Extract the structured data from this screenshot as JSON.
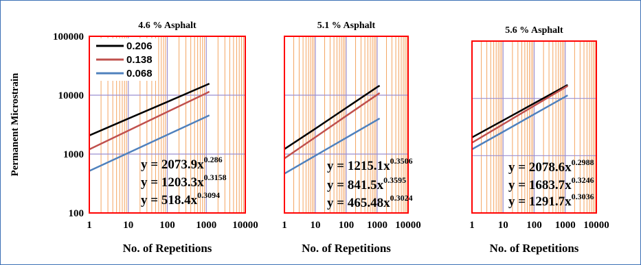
{
  "chart_data": [
    {
      "type": "line",
      "title": "4.6 % Asphalt",
      "xlabel": "No. of Repetitions",
      "ylabel": "Permanent Microstrain",
      "xscale": "log",
      "yscale": "log",
      "xlim": [
        1,
        10000
      ],
      "ylim": [
        100,
        100000
      ],
      "x_ticks": [
        "1",
        "10",
        "100",
        "1000",
        "10000"
      ],
      "y_ticks": [
        "100",
        "1000",
        "10000",
        "100000"
      ],
      "grid": true,
      "legend": "top-left",
      "series": [
        {
          "name": "0.206",
          "color": "#000000",
          "x": [
            1,
            10,
            100,
            1000,
            1200
          ],
          "y": [
            2074,
            4000,
            7700,
            14900,
            15700
          ]
        },
        {
          "name": "0.138",
          "color": "#c0504d",
          "x": [
            1,
            10,
            100,
            1000,
            1200
          ],
          "y": [
            1203,
            2500,
            5200,
            10800,
            11500
          ]
        },
        {
          "name": "0.068",
          "color": "#4f81bd",
          "x": [
            1,
            10,
            100,
            1000,
            1200
          ],
          "y": [
            518,
            1050,
            2120,
            4300,
            4550
          ]
        }
      ],
      "equations": [
        {
          "base": "y = 2073.9x",
          "exp": "0.286"
        },
        {
          "base": "y = 1203.3x",
          "exp": "0.3158"
        },
        {
          "base": "y = 518.4x",
          "exp": "0.3094"
        }
      ]
    },
    {
      "type": "line",
      "title": "5.1 % Asphalt",
      "xlabel": "No. of Repetitions",
      "xscale": "log",
      "yscale": "log",
      "xlim": [
        1,
        10000
      ],
      "ylim": [
        100,
        100000
      ],
      "x_ticks": [
        "1",
        "10",
        "100",
        "1000",
        "10000"
      ],
      "grid": true,
      "series": [
        {
          "color": "#000000",
          "x": [
            1,
            10,
            100,
            1000,
            1200
          ],
          "y": [
            1215,
            2700,
            6100,
            13700,
            14500
          ]
        },
        {
          "color": "#c0504d",
          "x": [
            1,
            10,
            100,
            1000,
            1200
          ],
          "y": [
            842,
            1930,
            4450,
            10200,
            10900
          ]
        },
        {
          "color": "#4f81bd",
          "x": [
            1,
            10,
            100,
            1000,
            1200
          ],
          "y": [
            465,
            940,
            1890,
            3800,
            4030
          ]
        }
      ],
      "equations": [
        {
          "base": "y = 1215.1x",
          "exp": "0.3506"
        },
        {
          "base": "y = 841.5x",
          "exp": "0.3595"
        },
        {
          "base": "y = 465.48x",
          "exp": "0.3024"
        }
      ]
    },
    {
      "type": "line",
      "title": "5.6 % Asphalt",
      "xlabel": "No. of Repetitions",
      "xscale": "log",
      "yscale": "log",
      "xlim": [
        1,
        10000
      ],
      "ylim": [
        100,
        100000
      ],
      "x_ticks": [
        "1",
        "10",
        "100",
        "1000",
        "10000"
      ],
      "grid": true,
      "series": [
        {
          "color": "#000000",
          "x": [
            1,
            10,
            100,
            1000,
            1200
          ],
          "y": [
            2079,
            4130,
            8200,
            16300,
            17200
          ]
        },
        {
          "color": "#c0504d",
          "x": [
            1,
            10,
            100,
            1000,
            1200
          ],
          "y": [
            1684,
            3540,
            7450,
            15600,
            16500
          ]
        },
        {
          "color": "#4f81bd",
          "x": [
            1,
            10,
            100,
            1000,
            1200
          ],
          "y": [
            1292,
            2610,
            5290,
            10700,
            11300
          ]
        }
      ],
      "equations": [
        {
          "base": "y = 2078.6x",
          "exp": "0.2988"
        },
        {
          "base": "y = 1683.7x",
          "exp": "0.3246"
        },
        {
          "base": "y = 1291.7x",
          "exp": "0.3036"
        }
      ]
    }
  ],
  "colors": {
    "frame": "#3a6fb5",
    "plot_border": "#ff0000",
    "minor_grid": "#f4a460",
    "major_grid": "#9b8fd0"
  }
}
